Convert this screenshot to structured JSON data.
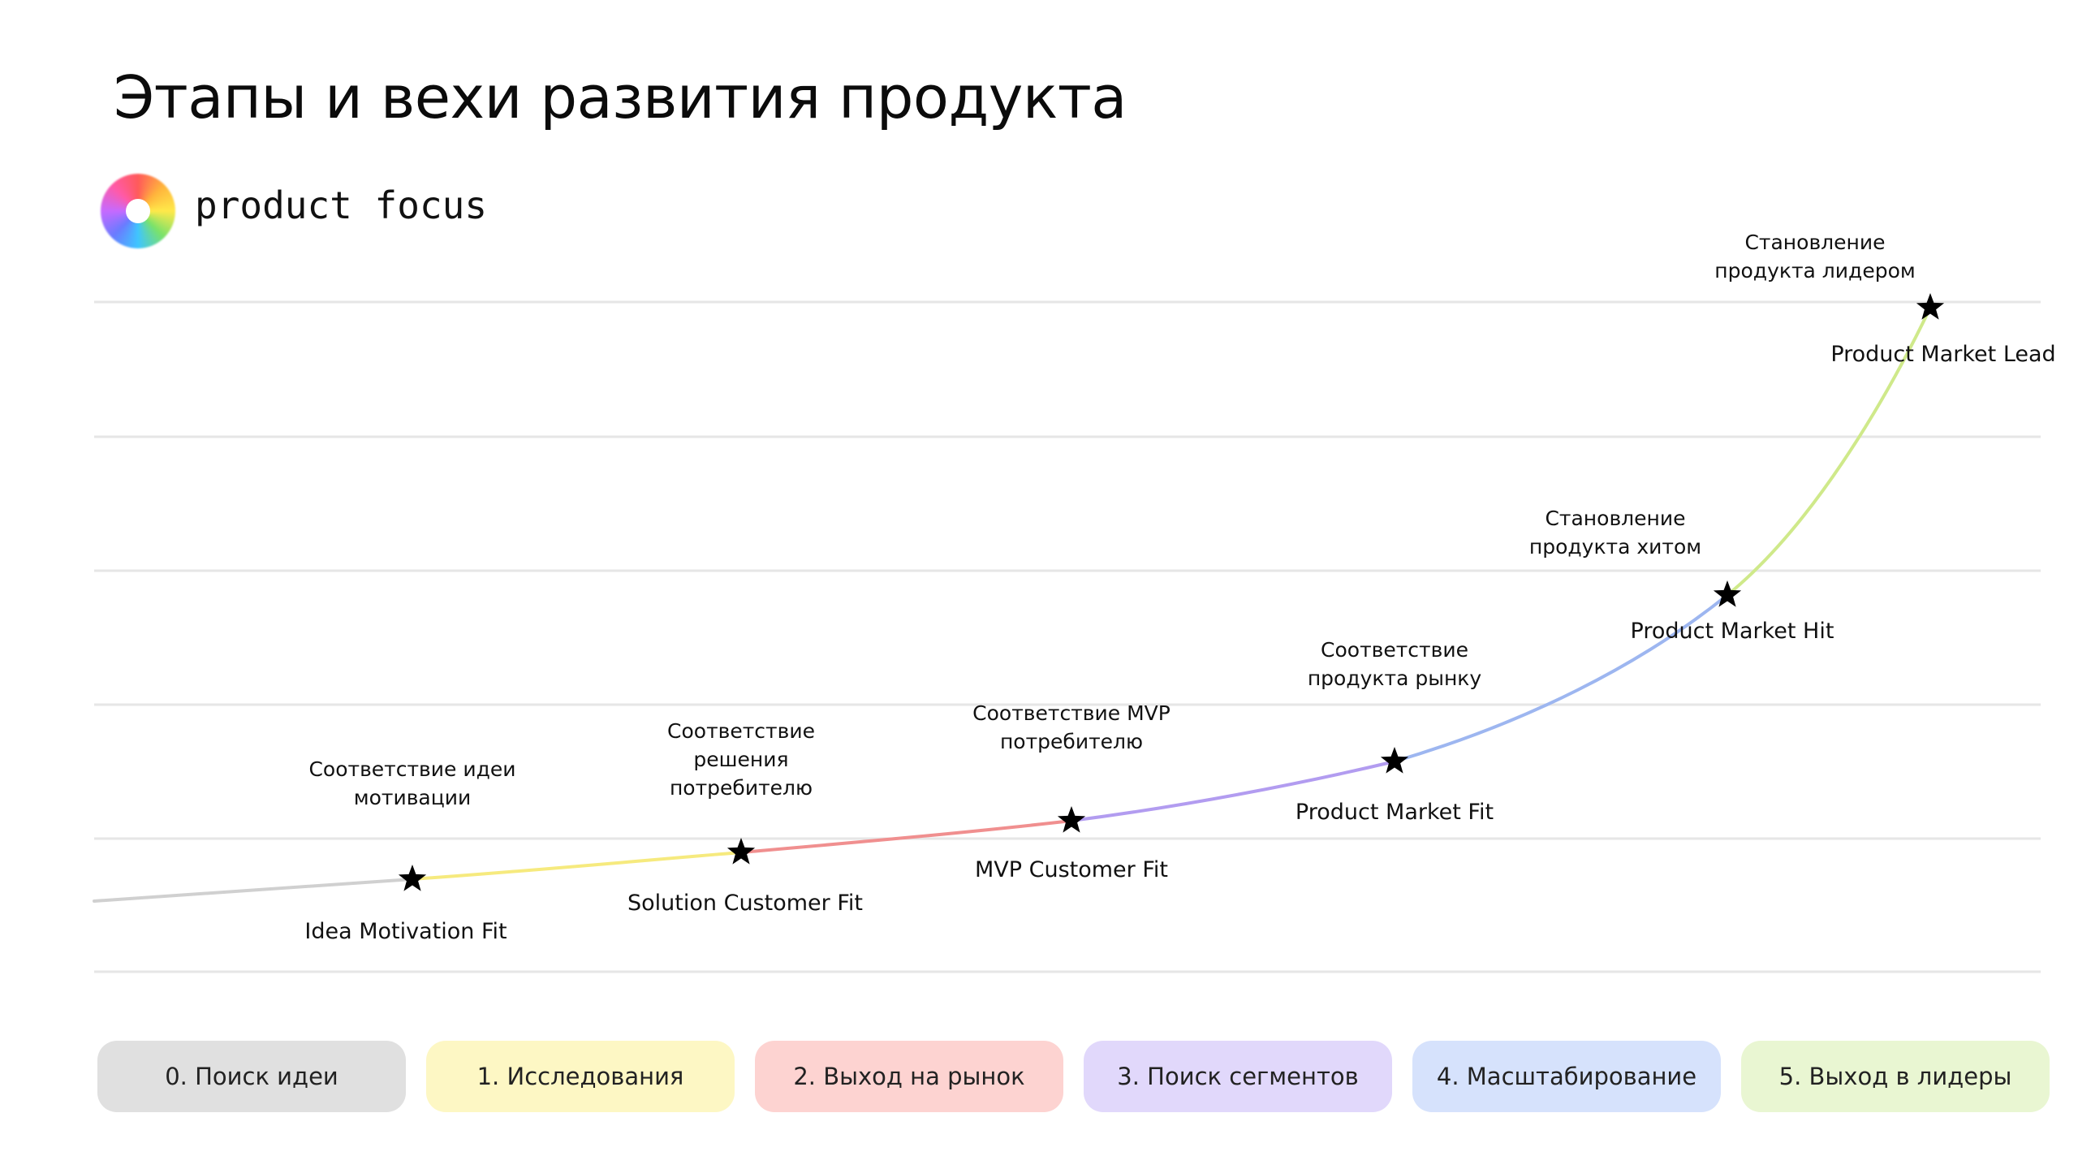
{
  "title": "Этапы и вехи развития продукта",
  "brand": {
    "name": "product focus",
    "logo_icon": "rainbow-ring-icon"
  },
  "chart_data": {
    "type": "line",
    "grid": true,
    "milestones": [
      {
        "name": "Idea Motivation Fit",
        "description": [
          "Соответствие идеи",
          "мотивации"
        ]
      },
      {
        "name": "Solution Customer Fit",
        "description": [
          "Соответствие",
          "решения",
          "потребителю"
        ]
      },
      {
        "name": "MVP Customer Fit",
        "description": [
          "Соответствие MVP",
          "потребителю"
        ]
      },
      {
        "name": "Product Market Fit",
        "description": [
          "Соответствие",
          "продукта рынку"
        ]
      },
      {
        "name": "Product Market Hit",
        "description": [
          "Становление",
          "продукта хитом"
        ]
      },
      {
        "name": "Product Market Lead",
        "description": [
          "Становление",
          "продукта лидером"
        ]
      }
    ],
    "segment_colors": [
      "#d0d0d0",
      "#f6ea7e",
      "#f08f8f",
      "#b29cf0",
      "#9db6f0",
      "#cfe98a"
    ]
  },
  "stages": [
    {
      "label": "0. Поиск идеи",
      "color": "#e0e0e0"
    },
    {
      "label": "1. Исследования",
      "color": "#fdf7c4"
    },
    {
      "label": "2. Выход на рынок",
      "color": "#fdd3d1"
    },
    {
      "label": "3. Поиск сегментов",
      "color": "#e1d8fb"
    },
    {
      "label": "4. Масштабирование",
      "color": "#d6e2fc"
    },
    {
      "label": "5. Выход в лидеры",
      "color": "#e9f6d2"
    }
  ]
}
